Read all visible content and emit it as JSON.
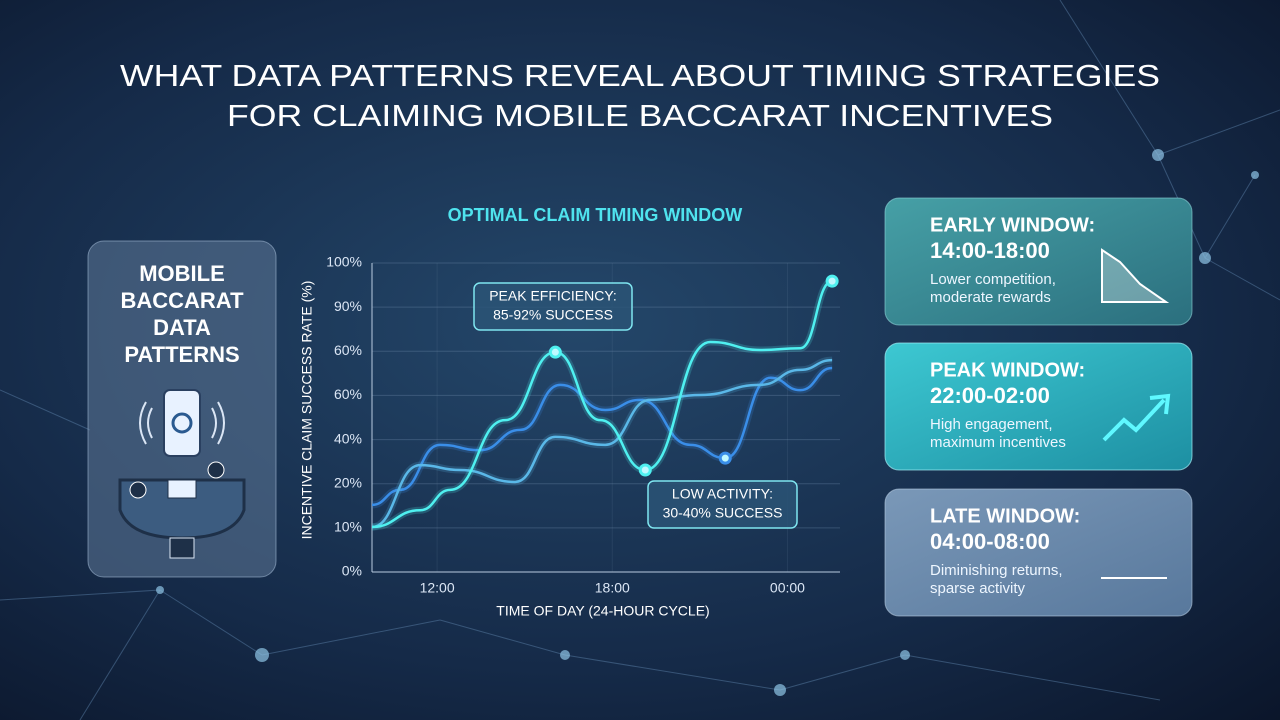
{
  "header": {
    "title": [
      "WHAT DATA PATTERNS REVEAL ABOUT TIMING STRATEGIES",
      "FOR CLAIMING MOBILE BACCARAT INCENTIVES"
    ]
  },
  "left_card": {
    "title": [
      "MOBILE",
      "BACCARAT",
      "DATA",
      "PATTERNS"
    ]
  },
  "chart_data": {
    "type": "line",
    "title": "OPTIMAL CLAIM TIMING WINDOW",
    "x_label": "TIME OF DAY (24-HOUR CYCLE)",
    "y_label": "INCENTIVE CLAIM SUCCESS RATE (%)",
    "xlim": [
      9.77,
      25.8
    ],
    "xticks": [
      {
        "value": 12,
        "label": "12:00"
      },
      {
        "value": 18,
        "label": "18:00"
      },
      {
        "value": 24,
        "label": "00:00"
      }
    ],
    "y_categories": [
      "0%",
      "10%",
      "20%",
      "40%",
      "60%",
      "60%",
      "90%",
      "100%"
    ],
    "ylim": [
      0,
      7
    ],
    "grid": true,
    "series": [
      {
        "color": "#3a8ee8",
        "x": [
          9.77,
          10.73,
          12.1,
          13.47,
          14.85,
          16.22,
          17.76,
          18.96,
          20.67,
          21.87,
          23.42,
          24.44,
          25.53
        ],
        "values": [
          1.52,
          1.86,
          2.88,
          2.76,
          3.22,
          4.24,
          3.67,
          3.9,
          2.88,
          2.58,
          4.4,
          4.12,
          4.62
        ]
      },
      {
        "color": "#5ab8e8",
        "x": [
          9.77,
          11.42,
          12.79,
          14.67,
          16.05,
          17.76,
          19.3,
          21.02,
          23.07,
          24.44,
          25.53
        ],
        "values": [
          1.02,
          2.42,
          2.31,
          2.04,
          3.06,
          2.88,
          3.9,
          4.01,
          4.24,
          4.58,
          4.8
        ]
      },
      {
        "color": "#4ff0f0",
        "x": [
          9.77,
          11.42,
          12.45,
          14.33,
          16.05,
          17.59,
          19.13,
          21.36,
          23.07,
          24.44,
          25.53
        ],
        "values": [
          1.02,
          1.4,
          1.86,
          3.44,
          4.98,
          3.44,
          2.31,
          5.21,
          5.03,
          5.07,
          6.59
        ]
      }
    ],
    "annotations": [
      {
        "lines": [
          "PEAK EFFICIENCY:",
          "85-92% SUCCESS"
        ]
      },
      {
        "lines": [
          "LOW ACTIVITY:",
          "30-40% SUCCESS"
        ]
      }
    ]
  },
  "windows": [
    {
      "label": "EARLY WINDOW:",
      "time": "14:00-18:00",
      "desc": [
        "Lower competition,",
        "moderate rewards"
      ]
    },
    {
      "label": "PEAK WINDOW:",
      "time": "22:00-02:00",
      "desc": [
        "High engagement,",
        "maximum incentives"
      ]
    },
    {
      "label": "LATE WINDOW:",
      "time": "04:00-08:00",
      "desc": [
        "Diminishing returns,",
        "sparse activity"
      ]
    }
  ]
}
